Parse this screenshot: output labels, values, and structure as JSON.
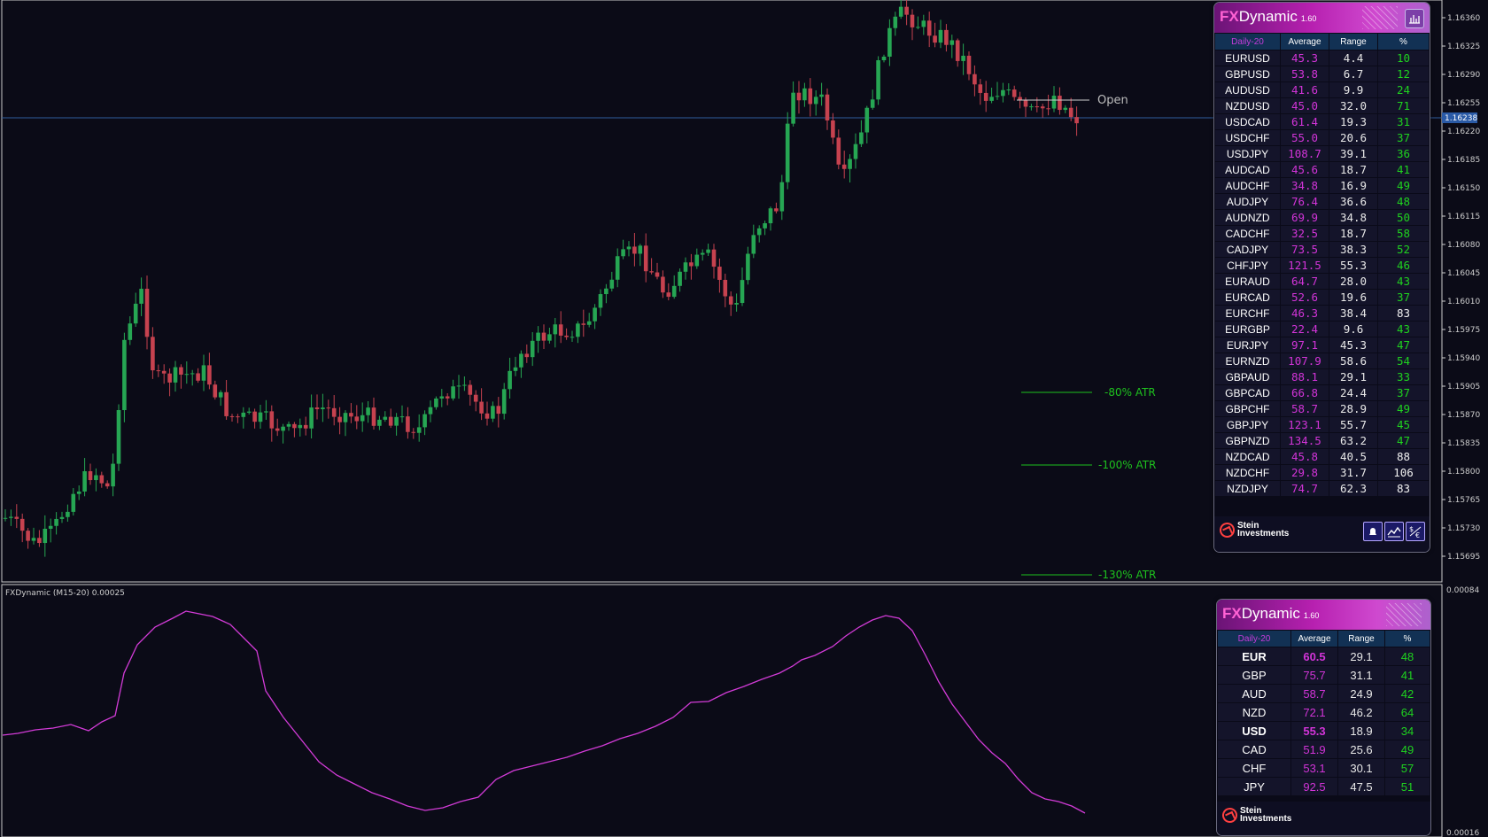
{
  "chart": {
    "indicator_label": "FXDynamic (M15-20)  0.00025",
    "open_label": "Open",
    "atr_levels": [
      "-80% ATR",
      "-100% ATR",
      "-130% ATR"
    ],
    "price_axis": [
      "1.16360",
      "1.16325",
      "1.16290",
      "1.16255",
      "1.16220",
      "1.16185",
      "1.16150",
      "1.16115",
      "1.16080",
      "1.16045",
      "1.16010",
      "1.15975",
      "1.15940",
      "1.15905",
      "1.15870",
      "1.15835",
      "1.15800",
      "1.15765",
      "1.15730",
      "1.15695"
    ],
    "current_price": "1.16238",
    "indicator_axis": {
      "top": "0.00084",
      "bottom": "0.00016"
    },
    "colors": {
      "bull": "#26a653",
      "bear": "#c6424f",
      "indicator": "#d23bd7",
      "atr": "#1ec21e",
      "price_line": "#2f5d9e"
    }
  },
  "panel_pairs": {
    "title_fx": "FX",
    "title_rest": "Dynamic",
    "version": "1.60",
    "headers": [
      "Daily-20",
      "Average",
      "Range",
      "%"
    ],
    "rows": [
      [
        "EURUSD",
        "45.3",
        "4.4",
        "10"
      ],
      [
        "GBPUSD",
        "53.8",
        "6.7",
        "12"
      ],
      [
        "AUDUSD",
        "41.6",
        "9.9",
        "24"
      ],
      [
        "NZDUSD",
        "45.0",
        "32.0",
        "71"
      ],
      [
        "USDCAD",
        "61.4",
        "19.3",
        "31"
      ],
      [
        "USDCHF",
        "55.0",
        "20.6",
        "37"
      ],
      [
        "USDJPY",
        "108.7",
        "39.1",
        "36"
      ],
      [
        "AUDCAD",
        "45.6",
        "18.7",
        "41"
      ],
      [
        "AUDCHF",
        "34.8",
        "16.9",
        "49"
      ],
      [
        "AUDJPY",
        "76.4",
        "36.6",
        "48"
      ],
      [
        "AUDNZD",
        "69.9",
        "34.8",
        "50"
      ],
      [
        "CADCHF",
        "32.5",
        "18.7",
        "58"
      ],
      [
        "CADJPY",
        "73.5",
        "38.3",
        "52"
      ],
      [
        "CHFJPY",
        "121.5",
        "55.3",
        "46"
      ],
      [
        "EURAUD",
        "64.7",
        "28.0",
        "43"
      ],
      [
        "EURCAD",
        "52.6",
        "19.6",
        "37"
      ],
      [
        "EURCHF",
        "46.3",
        "38.4",
        "83"
      ],
      [
        "EURGBP",
        "22.4",
        "9.6",
        "43"
      ],
      [
        "EURJPY",
        "97.1",
        "45.3",
        "47"
      ],
      [
        "EURNZD",
        "107.9",
        "58.6",
        "54"
      ],
      [
        "GBPAUD",
        "88.1",
        "29.1",
        "33"
      ],
      [
        "GBPCAD",
        "66.8",
        "24.4",
        "37"
      ],
      [
        "GBPCHF",
        "58.7",
        "28.9",
        "49"
      ],
      [
        "GBPJPY",
        "123.1",
        "55.7",
        "45"
      ],
      [
        "GBPNZD",
        "134.5",
        "63.2",
        "47"
      ],
      [
        "NZDCAD",
        "45.8",
        "40.5",
        "88"
      ],
      [
        "NZDCHF",
        "29.8",
        "31.7",
        "106"
      ],
      [
        "NZDJPY",
        "74.7",
        "62.3",
        "83"
      ]
    ],
    "footer_logo": [
      "Stein",
      "Investments"
    ]
  },
  "panel_currencies": {
    "title_fx": "FX",
    "title_rest": "Dynamic",
    "version": "1.60",
    "headers": [
      "Daily-20",
      "Average",
      "Range",
      "%"
    ],
    "rows": [
      [
        "EUR",
        "60.5",
        "29.1",
        "48"
      ],
      [
        "GBP",
        "75.7",
        "31.1",
        "41"
      ],
      [
        "AUD",
        "58.7",
        "24.9",
        "42"
      ],
      [
        "NZD",
        "72.1",
        "46.2",
        "64"
      ],
      [
        "USD",
        "55.3",
        "18.9",
        "34"
      ],
      [
        "CAD",
        "51.9",
        "25.6",
        "49"
      ],
      [
        "CHF",
        "53.1",
        "30.1",
        "57"
      ],
      [
        "JPY",
        "92.5",
        "47.5",
        "51"
      ]
    ],
    "footer_logo": [
      "Stein",
      "Investments"
    ]
  }
}
